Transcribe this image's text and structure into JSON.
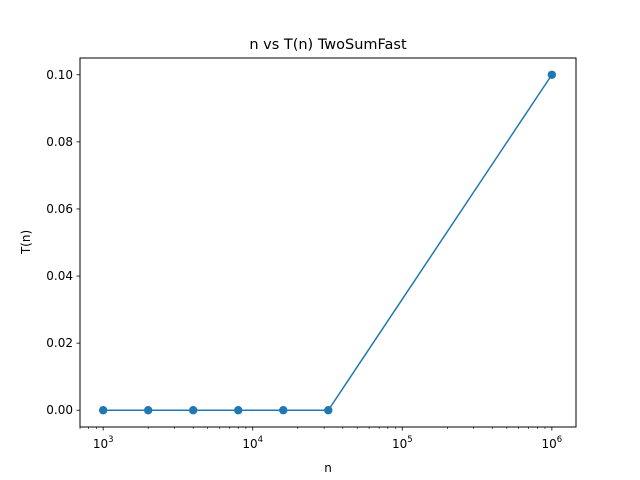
{
  "chart_data": {
    "type": "line",
    "title": "n vs T(n) TwoSumFast",
    "xlabel": "n",
    "ylabel": "T(n)",
    "x_scale": "log",
    "xlim": [
      700,
      1450000
    ],
    "ylim": [
      -0.005,
      0.105
    ],
    "grid": false,
    "legend": "none",
    "x_tick_labels": [
      {
        "value": 1000,
        "base": "10",
        "exp": "3"
      },
      {
        "value": 10000,
        "base": "10",
        "exp": "4"
      },
      {
        "value": 100000,
        "base": "10",
        "exp": "5"
      },
      {
        "value": 1000000,
        "base": "10",
        "exp": "6"
      }
    ],
    "y_ticks": [
      0.0,
      0.02,
      0.04,
      0.06,
      0.08,
      0.1
    ],
    "y_tick_labels": [
      "0.00",
      "0.02",
      "0.04",
      "0.06",
      "0.08",
      "0.10"
    ],
    "series": [
      {
        "color": "#1f77b4",
        "marker": "circle",
        "x": [
          1000,
          2000,
          4000,
          8000,
          16000,
          32000,
          1000000
        ],
        "y": [
          0.0,
          0.0,
          0.0,
          0.0,
          0.0,
          0.0,
          0.1
        ]
      }
    ]
  }
}
